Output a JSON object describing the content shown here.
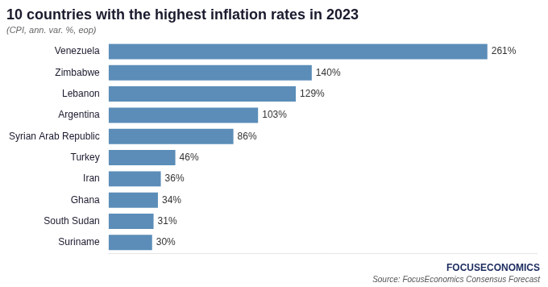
{
  "chart_data": {
    "type": "bar",
    "orientation": "horizontal",
    "title": "10 countries with the highest inflation rates in 2023",
    "subtitle": "(CPI, ann. var. %, eop)",
    "annotations": [
      "FOCUSECONOMICS",
      "Source: FocusEconomics Consensus Forecast"
    ],
    "categories": [
      "Venezuela",
      "Zimbabwe",
      "Lebanon",
      "Argentina",
      "Syrian Arab Republic",
      "Turkey",
      "Iran",
      "Ghana",
      "South Sudan",
      "Suriname"
    ],
    "values": [
      261,
      140,
      129,
      103,
      86,
      46,
      36,
      34,
      31,
      30
    ],
    "value_labels": [
      "261%",
      "140%",
      "129%",
      "103%",
      "86%",
      "46%",
      "36%",
      "34%",
      "31%",
      "30%"
    ],
    "color": "#5b8db8",
    "xlim": [
      0,
      295
    ],
    "grid": false,
    "data_labels": true,
    "tick_labels": "y"
  }
}
